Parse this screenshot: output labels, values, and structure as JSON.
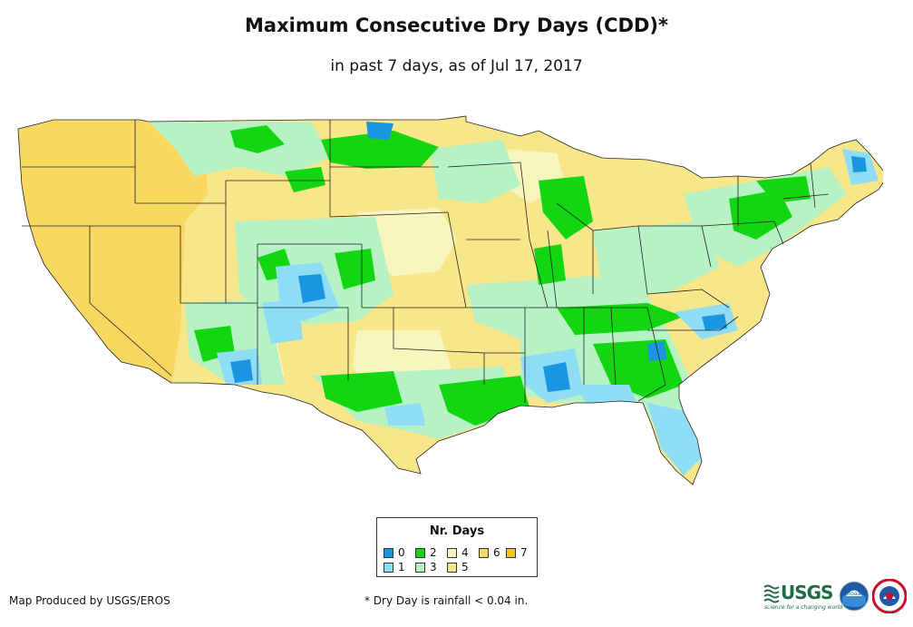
{
  "title": "Maximum Consecutive Dry Days (CDD)*",
  "subtitle": "in past 7 days, as of Jul 17, 2017",
  "legend": {
    "title": "Nr. Days",
    "items": [
      {
        "label": "0",
        "color": "#1a96e0"
      },
      {
        "label": "1",
        "color": "#8fdcf5"
      },
      {
        "label": "2",
        "color": "#11d611"
      },
      {
        "label": "3",
        "color": "#b6f2c4"
      },
      {
        "label": "4",
        "color": "#f7f5be"
      },
      {
        "label": "5",
        "color": "#f8e68a"
      },
      {
        "label": "6",
        "color": "#f9d862"
      },
      {
        "label": "7",
        "color": "#f7c31a"
      }
    ]
  },
  "credit": "Map Produced by USGS/EROS",
  "footnote": "* Dry Day is rainfall < 0.04 in.",
  "logos": {
    "usgs_text": "USGS",
    "usgs_tagline": "science for a changing world",
    "noaa_text": "noaa"
  }
}
